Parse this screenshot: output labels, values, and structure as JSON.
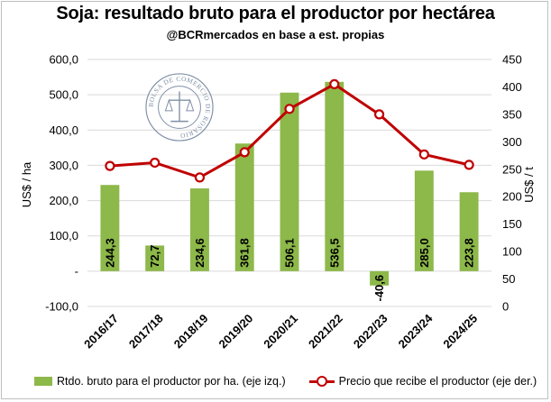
{
  "title": "Soja: resultado bruto para el productor por hectárea",
  "subtitle": "@BCRmercados en base a est. propias",
  "logo_text": "BOLSA DE COMERCIO DE ROSARIO",
  "colors": {
    "bar": "#8db84a",
    "line": "#c00000",
    "grid": "#d9d9d9"
  },
  "chart_data": {
    "type": "bar+line",
    "categories": [
      "2016/17",
      "2017/18",
      "2018/19",
      "2019/20",
      "2020/21",
      "2021/22",
      "2022/23",
      "2023/24",
      "2024/25"
    ],
    "series": [
      {
        "name": "Rtdo. bruto para el productor por ha. (eje izq.)",
        "type": "bar",
        "axis": "left",
        "values": [
          244.3,
          72.7,
          234.6,
          361.8,
          506.1,
          536.5,
          -40.6,
          285.0,
          223.8
        ],
        "labels": [
          "244,3",
          "72,7",
          "234,6",
          "361,8",
          "506,1",
          "536,5",
          "-40,6",
          "285,0",
          "223,8"
        ]
      },
      {
        "name": "Precio que recibe el productor (eje der.)",
        "type": "line",
        "axis": "right",
        "values": [
          256,
          262,
          235,
          281,
          360,
          405,
          350,
          277,
          258
        ]
      }
    ],
    "ylabel_left": "US$ / ha",
    "ylabel_right": "US$ / t",
    "ylim_left": [
      -100,
      600
    ],
    "ylim_right": [
      0,
      450
    ],
    "yticks_left": [
      "-100,0",
      "-",
      "100,0",
      "200,0",
      "300,0",
      "400,0",
      "500,0",
      "600,0"
    ],
    "yticks_right": [
      "0",
      "50",
      "100",
      "150",
      "200",
      "250",
      "300",
      "350",
      "400",
      "450"
    ],
    "grid": true,
    "legend": "bottom"
  }
}
